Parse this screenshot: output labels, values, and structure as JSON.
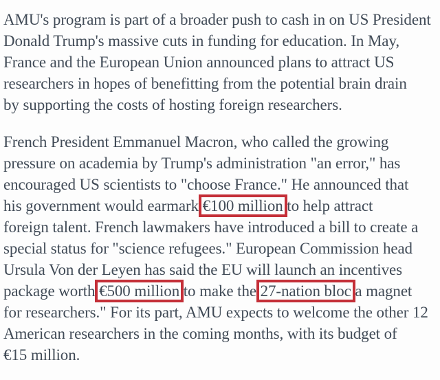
{
  "page": {
    "background_color": "#fdfdfd",
    "text_color": "#414b57",
    "highlight_color": "#c42f38"
  },
  "article": {
    "highlighted_phrases": [
      "€100 million",
      "€500 million",
      "27-nation bloc"
    ],
    "paragraphs": [
      {
        "lines": [
          {
            "segments": [
              {
                "text": "AMU's program is part of a broader push to cash in on US President",
                "boxed": false
              }
            ]
          },
          {
            "segments": [
              {
                "text": "Donald Trump's massive cuts in funding for education. In May,",
                "boxed": false
              }
            ]
          },
          {
            "segments": [
              {
                "text": "France and the European Union announced plans to attract US",
                "boxed": false
              }
            ]
          },
          {
            "segments": [
              {
                "text": "researchers in hopes of benefitting from the potential brain drain",
                "boxed": false
              }
            ]
          },
          {
            "segments": [
              {
                "text": "by supporting the costs of hosting foreign researchers.",
                "boxed": false
              }
            ]
          }
        ]
      },
      {
        "lines": [
          {
            "segments": [
              {
                "text": "French President Emmanuel Macron, who called the growing",
                "boxed": false
              }
            ]
          },
          {
            "segments": [
              {
                "text": "pressure on academia by Trump's administration \"an error,\" has",
                "boxed": false
              }
            ]
          },
          {
            "segments": [
              {
                "text": "encouraged US scientists to \"choose France.\" He announced that",
                "boxed": false
              }
            ]
          },
          {
            "segments": [
              {
                "text": "his government would earmark ",
                "boxed": false
              },
              {
                "text": "€100 million",
                "boxed": true
              },
              {
                "text": " to help attract",
                "boxed": false
              }
            ]
          },
          {
            "segments": [
              {
                "text": "foreign talent. French lawmakers have introduced a bill to create a",
                "boxed": false
              }
            ]
          },
          {
            "segments": [
              {
                "text": "special status for \"science refugees.\" European Commission head",
                "boxed": false
              }
            ]
          },
          {
            "segments": [
              {
                "text": "Ursula Von der Leyen has said the EU will launch an incentives",
                "boxed": false
              }
            ]
          },
          {
            "segments": [
              {
                "text": "package worth ",
                "boxed": false
              },
              {
                "text": "€500 million",
                "boxed": true
              },
              {
                "text": " to make the ",
                "boxed": false
              },
              {
                "text": "27-nation bloc",
                "boxed": true
              },
              {
                "text": " a magnet",
                "boxed": false
              }
            ]
          },
          {
            "segments": [
              {
                "text": "for researchers.\" For its part, AMU expects to welcome the other 12",
                "boxed": false
              }
            ]
          },
          {
            "segments": [
              {
                "text": "American researchers in the coming months, with its budget of",
                "boxed": false
              }
            ]
          },
          {
            "segments": [
              {
                "text": "€15 million.",
                "boxed": false
              }
            ]
          }
        ]
      }
    ]
  }
}
